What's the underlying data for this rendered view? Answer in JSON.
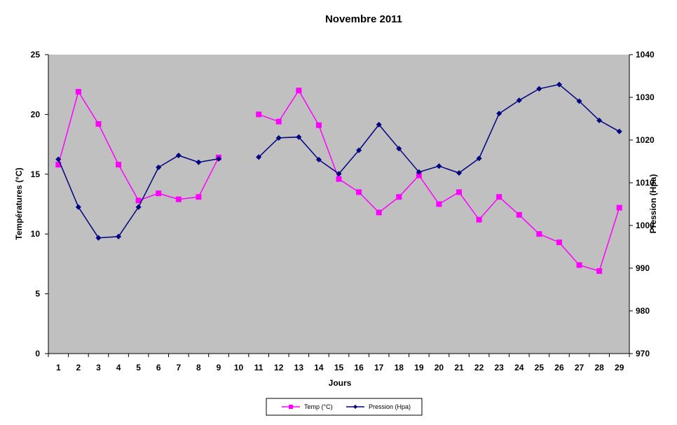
{
  "chart_data": {
    "type": "line",
    "title": "Novembre 2011",
    "xlabel": "Jours",
    "ylabel_left": "Températures (°C)",
    "ylabel_right": "Pression (Hpa)",
    "categories": [
      "1",
      "2",
      "3",
      "4",
      "5",
      "6",
      "7",
      "8",
      "9",
      "10",
      "11",
      "12",
      "13",
      "14",
      "15",
      "16",
      "17",
      "18",
      "19",
      "20",
      "21",
      "22",
      "23",
      "24",
      "25",
      "26",
      "27",
      "28",
      "29"
    ],
    "ylim_left": [
      0,
      25
    ],
    "yticks_left": [
      "0",
      "5",
      "10",
      "15",
      "20",
      "25"
    ],
    "ylim_right": [
      970,
      1040
    ],
    "yticks_right": [
      "970",
      "980",
      "990",
      "1000",
      "1010",
      "1020",
      "1030",
      "1040"
    ],
    "grid": false,
    "legend_position": "bottom",
    "series": [
      {
        "name": "Temp (°C)",
        "axis": "left",
        "color": "#ff00ff",
        "marker": "square",
        "values": [
          15.8,
          21.9,
          19.2,
          15.8,
          12.8,
          13.4,
          12.9,
          13.1,
          16.4,
          null,
          20.0,
          19.4,
          22.0,
          19.1,
          14.6,
          13.5,
          11.8,
          13.1,
          14.9,
          12.5,
          13.5,
          11.2,
          13.1,
          11.6,
          10.0,
          9.3,
          7.4,
          6.9,
          12.2
        ]
      },
      {
        "name": "Pression (Hpa)",
        "axis": "right",
        "color": "#000080",
        "marker": "diamond",
        "values": [
          1015.5,
          1004.3,
          997.1,
          997.4,
          1004.3,
          1013.6,
          1016.4,
          1014.8,
          1015.6,
          null,
          1016.0,
          1020.5,
          1020.7,
          1015.4,
          1012.1,
          1017.6,
          1023.6,
          1018.0,
          1012.5,
          1013.9,
          1012.3,
          1015.7,
          1026.2,
          1029.3,
          1032.0,
          1033.0,
          1029.1,
          1024.6,
          1022.0
        ]
      }
    ],
    "colors": {
      "plot_background": "#c0c0c0",
      "axis": "#000000"
    }
  }
}
